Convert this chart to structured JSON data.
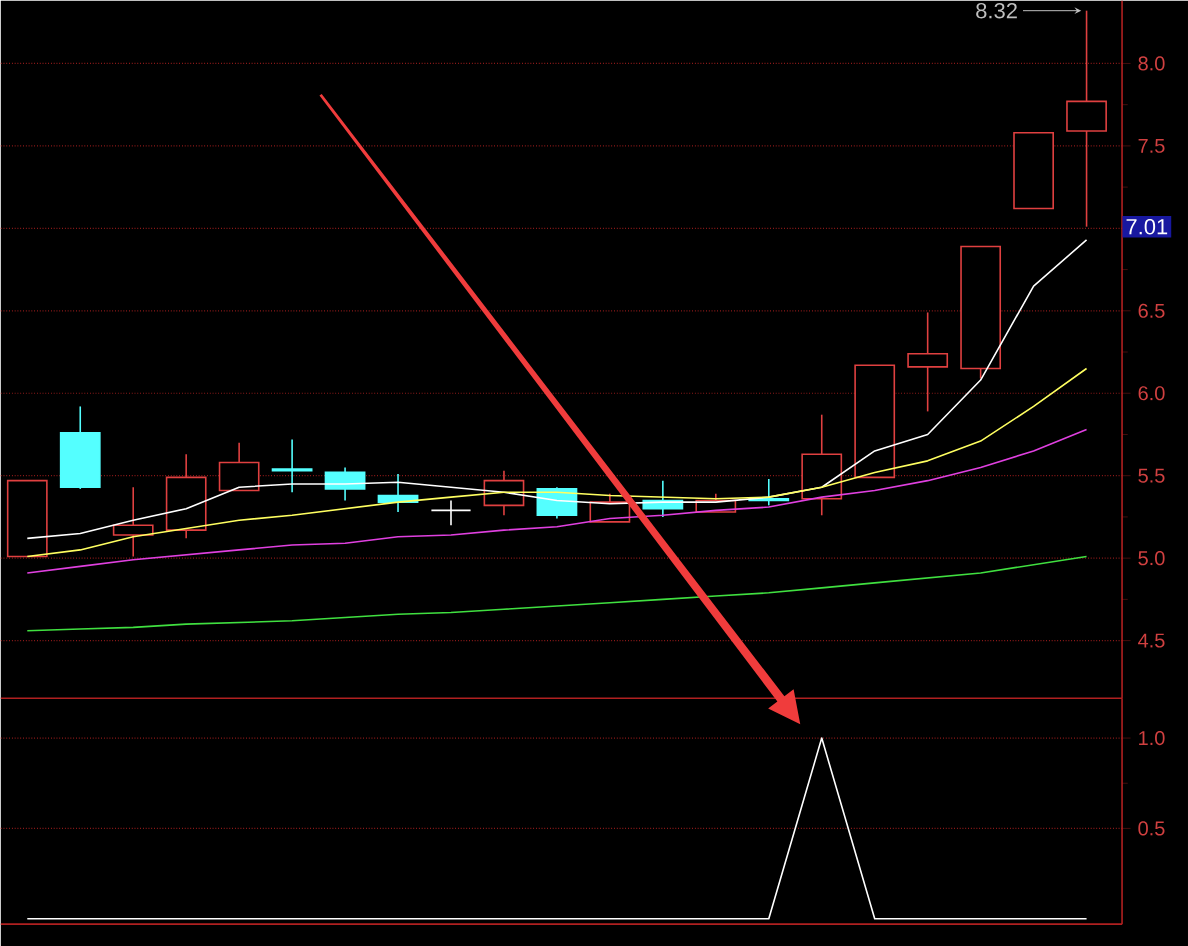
{
  "chart_data": [
    {
      "type": "candlestick",
      "categories": [
        null,
        null,
        null,
        null,
        null,
        null,
        null,
        null,
        null,
        null,
        null,
        null,
        null,
        null,
        null,
        null,
        null,
        null,
        null,
        null,
        null
      ],
      "ohlc": [
        [
          5.01,
          5.47,
          5.01,
          5.47
        ],
        [
          5.76,
          5.92,
          5.42,
          5.43
        ],
        [
          5.14,
          5.43,
          5.01,
          5.2
        ],
        [
          5.17,
          5.63,
          5.12,
          5.49
        ],
        [
          5.41,
          5.7,
          5.41,
          5.58
        ],
        [
          5.54,
          5.72,
          5.4,
          5.53
        ],
        [
          5.52,
          5.55,
          5.35,
          5.42
        ],
        [
          5.38,
          5.51,
          5.28,
          5.34
        ],
        [
          5.29,
          5.35,
          5.2,
          5.29
        ],
        [
          5.32,
          5.53,
          5.26,
          5.47
        ],
        [
          5.42,
          5.43,
          5.24,
          5.26
        ],
        [
          5.22,
          5.39,
          5.22,
          5.34
        ],
        [
          5.35,
          5.47,
          5.25,
          5.3
        ],
        [
          5.28,
          5.39,
          5.28,
          5.35
        ],
        [
          5.36,
          5.48,
          5.32,
          5.35
        ],
        [
          5.36,
          5.87,
          5.26,
          5.63
        ],
        [
          5.49,
          6.17,
          5.49,
          6.17
        ],
        [
          6.16,
          6.49,
          5.89,
          6.24
        ],
        [
          6.15,
          6.89,
          6.09,
          6.89
        ],
        [
          7.12,
          7.58,
          7.12,
          7.58
        ],
        [
          7.59,
          8.32,
          7.01,
          7.77
        ]
      ],
      "colors": [
        "#e04040",
        "#54ffff",
        "#e04040",
        "#e04040",
        "#e04040",
        "#54ffff",
        "#54ffff",
        "#54ffff",
        "#ffffff",
        "#e04040",
        "#54ffff",
        "#e04040",
        "#54ffff",
        "#e04040",
        "#54ffff",
        "#e04040",
        "#e04040",
        "#e04040",
        "#e04040",
        "#e04040",
        "#e04040"
      ],
      "series": [
        {
          "type": "line",
          "color": "#ffffff",
          "values": [
            5.12,
            5.15,
            5.23,
            5.3,
            5.43,
            5.45,
            5.45,
            5.46,
            5.43,
            5.4,
            5.35,
            5.33,
            5.34,
            5.34,
            5.37,
            5.43,
            5.65,
            5.75,
            6.08,
            6.65,
            6.93
          ]
        },
        {
          "type": "line",
          "color": "#ffff60",
          "values": [
            5.01,
            5.05,
            5.13,
            5.18,
            5.23,
            5.26,
            5.3,
            5.34,
            5.37,
            5.4,
            5.4,
            5.38,
            5.37,
            5.36,
            5.37,
            5.43,
            5.52,
            5.59,
            5.71,
            5.92,
            6.15
          ]
        },
        {
          "type": "line",
          "color": "#e040e0",
          "values": [
            4.91,
            4.95,
            4.99,
            5.02,
            5.05,
            5.08,
            5.09,
            5.13,
            5.14,
            5.17,
            5.19,
            5.24,
            5.26,
            5.29,
            5.31,
            5.37,
            5.41,
            5.47,
            5.55,
            5.65,
            5.78
          ]
        },
        {
          "type": "line",
          "color": "#40e040",
          "values": [
            4.56,
            4.57,
            4.58,
            4.6,
            4.61,
            4.62,
            4.64,
            4.66,
            4.67,
            4.69,
            4.71,
            4.73,
            4.75,
            4.77,
            4.79,
            4.82,
            4.85,
            4.88,
            4.91,
            4.96,
            5.01
          ]
        }
      ],
      "ylim": [
        4.15,
        8.38
      ],
      "yticks": [
        {
          "value": 4.5,
          "label": "4.5"
        },
        {
          "value": 5,
          "label": "5.0"
        },
        {
          "value": 5.5,
          "label": "5.5"
        },
        {
          "value": 6,
          "label": "6.0"
        },
        {
          "value": 6.5,
          "label": "6.5"
        },
        {
          "value": 7,
          "label": null
        },
        {
          "value": 7.5,
          "label": "7.5"
        },
        {
          "value": 8,
          "label": "8.0"
        }
      ],
      "grid": "y",
      "tick_labels": "y",
      "annotations": [
        "8.32",
        {
          "text": "7.01",
          "y": 7.01
        }
      ]
    },
    {
      "type": "line",
      "categories": [
        null,
        null,
        null,
        null,
        null,
        null,
        null,
        null,
        null,
        null,
        null,
        null,
        null,
        null,
        null,
        null,
        null,
        null,
        null,
        null,
        null
      ],
      "values": [
        0,
        0,
        0,
        0,
        0,
        0,
        0,
        0,
        0,
        0,
        0,
        0,
        0,
        0,
        0,
        1,
        0,
        0,
        0,
        0,
        0
      ],
      "color": "#ffffff",
      "ylim": [
        -0.03,
        1.22
      ],
      "yticks": [
        {
          "value": 0.5,
          "label": "0.5"
        },
        {
          "value": 1,
          "label": "1.0"
        }
      ],
      "grid": "y",
      "tick_labels": "y"
    }
  ]
}
